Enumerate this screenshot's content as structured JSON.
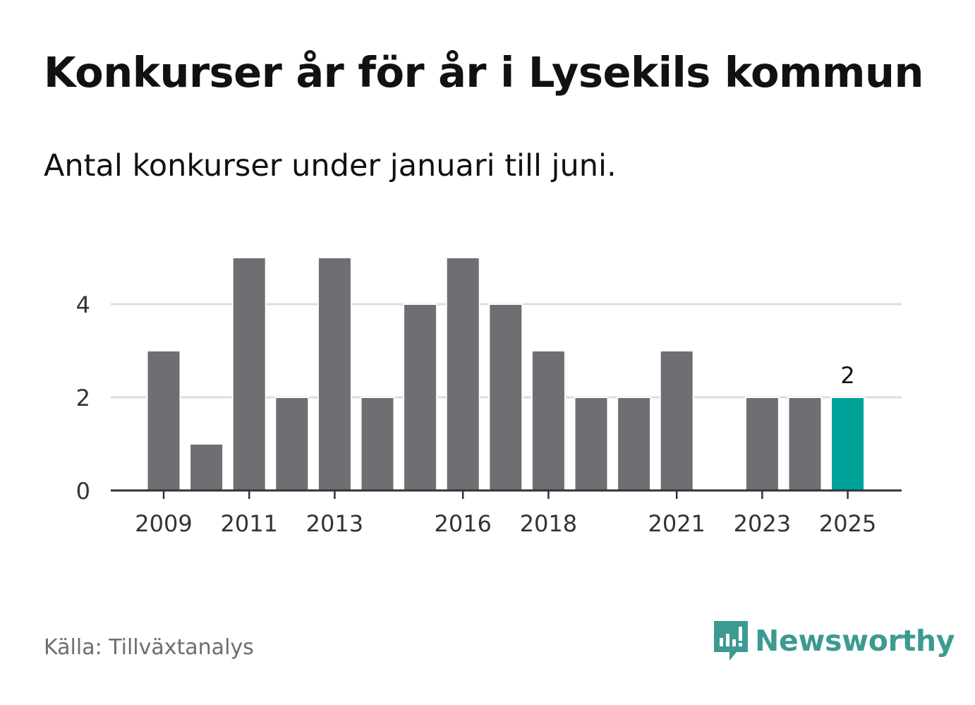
{
  "title": "Konkurser år för år i Lysekils kommun",
  "subtitle": "Antal konkurser under januari till juni.",
  "source": "Källa: Tillväxtanalys",
  "brand": {
    "name": "Newsworthy",
    "icon": "newsworthy-logo-icon",
    "color": "#3c9a92"
  },
  "chart_data": {
    "type": "bar",
    "categories": [
      "2009",
      "2010",
      "2011",
      "2012",
      "2013",
      "2014",
      "2015",
      "2016",
      "2017",
      "2018",
      "2019",
      "2020",
      "2021",
      "2022",
      "2023",
      "2024",
      "2025"
    ],
    "values": [
      3,
      1,
      5,
      2,
      5,
      2,
      4,
      5,
      4,
      3,
      2,
      2,
      3,
      0,
      2,
      2,
      2
    ],
    "x_tick_labels": [
      "2009",
      "2011",
      "2013",
      "2016",
      "2018",
      "2021",
      "2023",
      "2025"
    ],
    "y_ticks": [
      0,
      2,
      4
    ],
    "ylim": [
      0,
      5
    ],
    "grid": true,
    "bar_color": "#6f6e73",
    "highlight_color": "#00a39a",
    "highlight_category": "2025",
    "value_label": {
      "category": "2025",
      "text": "2"
    }
  }
}
